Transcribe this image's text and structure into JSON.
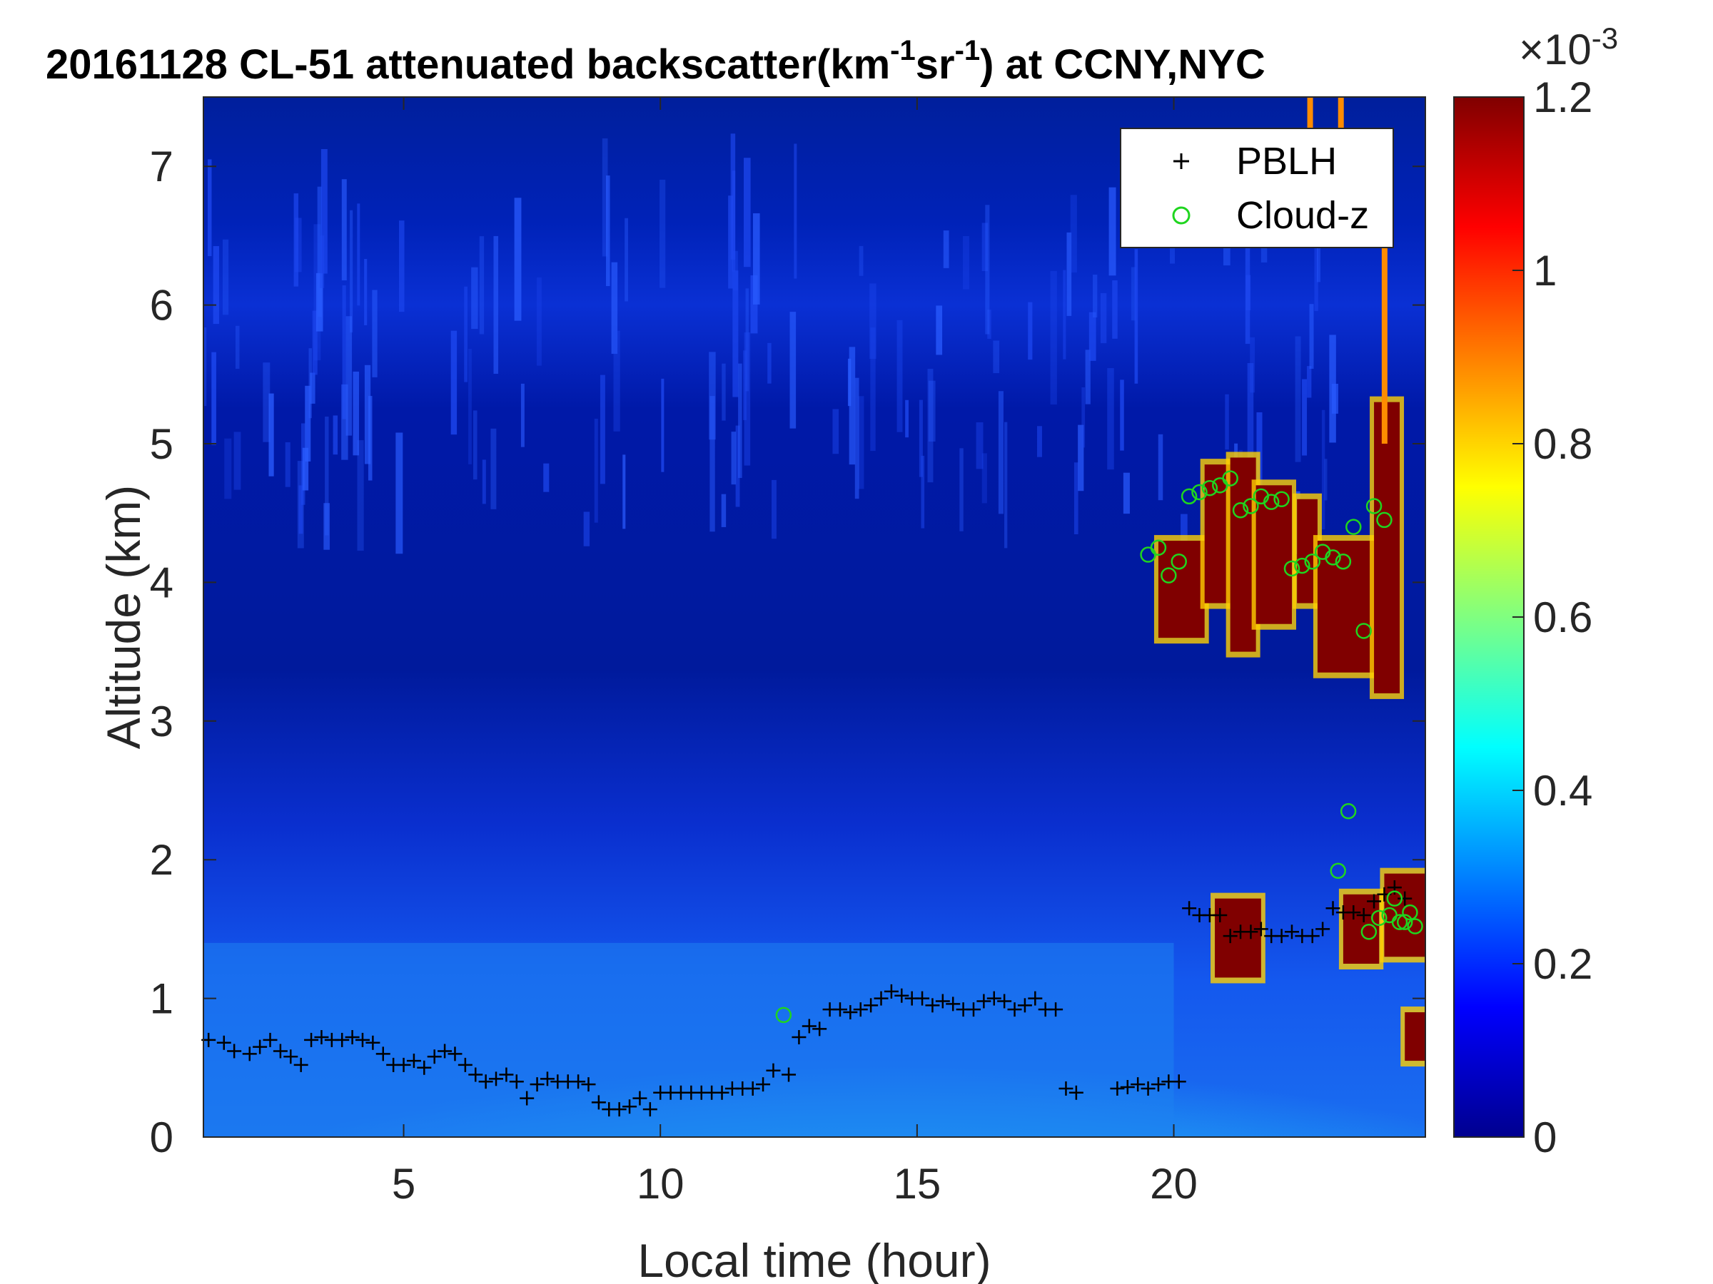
{
  "chart_data": {
    "type": "heatmap",
    "title_main": "20161128  CL-51 attenuated backscatter(km",
    "title_sup1": "-1",
    "title_mid": "sr",
    "title_sup2": "-1",
    "title_end": ") at CCNY,NYC",
    "xlabel": "Local time (hour)",
    "ylabel": "Altitude (km)",
    "xlim": [
      1.1,
      24.9
    ],
    "ylim": [
      0,
      7.5
    ],
    "xticks": [
      5,
      10,
      15,
      20
    ],
    "yticks": [
      0,
      1,
      2,
      3,
      4,
      5,
      6,
      7
    ],
    "colorbar": {
      "colormap": "jet",
      "clim": [
        0,
        1.2
      ],
      "ticks": [
        0,
        0.2,
        0.4,
        0.6,
        0.8,
        1,
        1.2
      ],
      "exponent_base": "×10",
      "exponent_power": "-3"
    },
    "legend": {
      "position": "top-right",
      "entries": [
        {
          "label": "PBLH",
          "marker": "plus",
          "color": "#000000"
        },
        {
          "label": "Cloud-z",
          "marker": "circle",
          "color": "#1fd51f"
        }
      ]
    },
    "pblh": {
      "time": [
        1.2,
        1.5,
        1.7,
        2.0,
        2.2,
        2.4,
        2.6,
        2.8,
        3.0,
        3.2,
        3.4,
        3.6,
        3.8,
        4.0,
        4.2,
        4.4,
        4.6,
        4.8,
        5.0,
        5.2,
        5.4,
        5.6,
        5.8,
        6.0,
        6.2,
        6.4,
        6.6,
        6.8,
        7.0,
        7.2,
        7.4,
        7.6,
        7.8,
        8.0,
        8.2,
        8.4,
        8.6,
        8.8,
        9.0,
        9.2,
        9.4,
        9.6,
        9.8,
        10.0,
        10.2,
        10.4,
        10.6,
        10.8,
        11.0,
        11.2,
        11.4,
        11.6,
        11.8,
        12.0,
        12.2,
        12.5,
        12.7,
        12.9,
        13.1,
        13.3,
        13.5,
        13.7,
        13.9,
        14.1,
        14.3,
        14.5,
        14.7,
        14.9,
        15.1,
        15.3,
        15.5,
        15.7,
        15.9,
        16.1,
        16.3,
        16.5,
        16.7,
        16.9,
        17.1,
        17.3,
        17.5,
        17.7,
        17.9,
        18.1,
        18.9,
        19.1,
        19.3,
        19.5,
        19.7,
        19.9,
        20.1,
        20.3,
        20.5,
        20.7,
        20.9,
        21.1,
        21.3,
        21.5,
        21.7,
        21.9,
        22.1,
        22.3,
        22.5,
        22.7,
        22.9,
        23.1,
        23.3,
        23.5,
        23.7,
        23.9,
        24.1,
        24.3,
        24.5
      ],
      "height": [
        0.7,
        0.68,
        0.62,
        0.6,
        0.65,
        0.7,
        0.62,
        0.58,
        0.52,
        0.7,
        0.72,
        0.7,
        0.7,
        0.72,
        0.7,
        0.68,
        0.6,
        0.52,
        0.52,
        0.55,
        0.5,
        0.58,
        0.62,
        0.6,
        0.52,
        0.45,
        0.4,
        0.42,
        0.45,
        0.4,
        0.28,
        0.38,
        0.42,
        0.4,
        0.4,
        0.4,
        0.38,
        0.25,
        0.2,
        0.2,
        0.22,
        0.28,
        0.2,
        0.32,
        0.32,
        0.32,
        0.32,
        0.32,
        0.32,
        0.32,
        0.35,
        0.35,
        0.35,
        0.38,
        0.48,
        0.45,
        0.72,
        0.8,
        0.78,
        0.92,
        0.92,
        0.9,
        0.92,
        0.95,
        1.0,
        1.05,
        1.02,
        1.0,
        1.0,
        0.95,
        0.98,
        0.96,
        0.92,
        0.92,
        0.98,
        1.0,
        0.98,
        0.92,
        0.95,
        1.0,
        0.92,
        0.92,
        0.35,
        0.32,
        0.35,
        0.36,
        0.38,
        0.35,
        0.38,
        0.4,
        0.4,
        1.65,
        1.6,
        1.6,
        1.6,
        1.45,
        1.48,
        1.48,
        1.5,
        1.45,
        1.45,
        1.48,
        1.45,
        1.45,
        1.5,
        1.65,
        1.62,
        1.62,
        1.6,
        1.7,
        1.75,
        1.8,
        1.72
      ]
    },
    "cloud_z": {
      "time": [
        12.4,
        19.5,
        19.7,
        19.9,
        20.1,
        20.3,
        20.5,
        20.7,
        20.9,
        21.1,
        21.3,
        21.5,
        21.7,
        21.9,
        22.1,
        22.3,
        22.5,
        22.7,
        22.9,
        23.1,
        23.3,
        23.5,
        23.7,
        23.9,
        24.1,
        24.3,
        24.5,
        24.7,
        23.2,
        23.4,
        23.8,
        24.0,
        24.2,
        24.4,
        24.6
      ],
      "height": [
        0.88,
        4.2,
        4.25,
        4.05,
        4.15,
        4.62,
        4.65,
        4.68,
        4.7,
        4.75,
        4.52,
        4.55,
        4.62,
        4.58,
        4.6,
        4.1,
        4.12,
        4.15,
        4.22,
        4.18,
        4.15,
        4.4,
        3.65,
        4.55,
        4.45,
        1.72,
        1.55,
        1.52,
        1.92,
        2.35,
        1.48,
        1.58,
        1.6,
        1.55,
        1.62
      ]
    }
  }
}
